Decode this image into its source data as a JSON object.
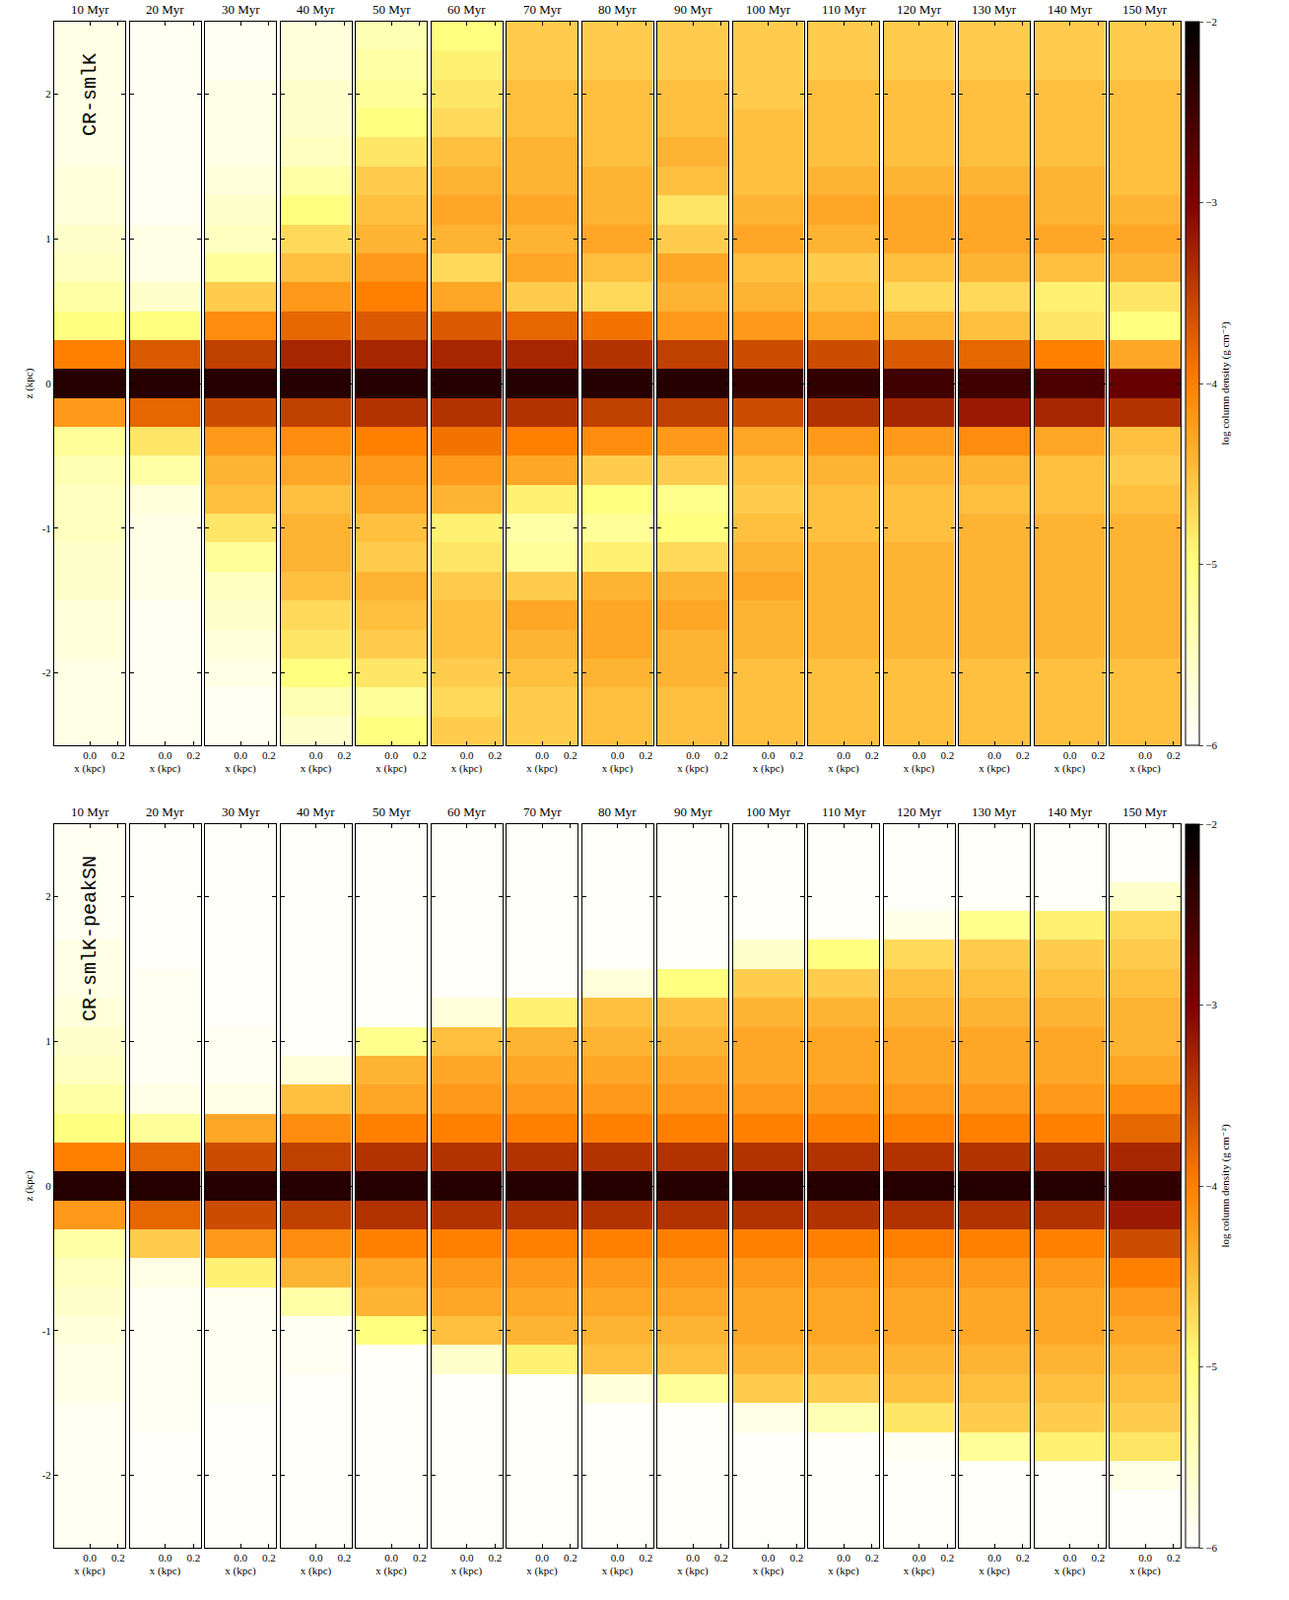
{
  "chart_data": [
    {
      "type": "heatmap",
      "title": "CR-smlK",
      "x_label": "x (kpc)",
      "y_label": "z (kpc)",
      "xlim": [
        -0.25,
        0.25
      ],
      "xticks": [
        {
          "value": 0,
          "label": "0.0"
        },
        {
          "value": 0.2,
          "label": "0.2"
        }
      ],
      "ylim": [
        -2.5,
        2.5
      ],
      "yticks": [
        -2,
        -1,
        0,
        1,
        2
      ],
      "colorbar": {
        "label": "log column density (g cm⁻²)",
        "range": [
          -6,
          -2
        ],
        "ticks": [
          -6,
          -5,
          -4,
          -3,
          -2
        ]
      },
      "z": [
        -2.4,
        -2.2,
        -2.0,
        -1.8,
        -1.6,
        -1.4,
        -1.2,
        -1.0,
        -0.8,
        -0.6,
        -0.4,
        -0.2,
        0,
        0.2,
        0.4,
        0.6,
        0.8,
        1.0,
        1.2,
        1.4,
        1.6,
        1.8,
        2.0,
        2.2,
        2.4
      ],
      "panels": [
        {
          "title": "10 Myr",
          "values": [
            -5.8,
            -5.8,
            -5.8,
            -5.7,
            -5.7,
            -5.6,
            -5.6,
            -5.5,
            -5.5,
            -5.4,
            -5.2,
            -4.2,
            -2.3,
            -4.0,
            -5.0,
            -5.3,
            -5.5,
            -5.6,
            -5.7,
            -5.7,
            -5.8,
            -5.8,
            -5.8,
            -5.8,
            -5.8
          ]
        },
        {
          "title": "20 Myr",
          "values": [
            -5.9,
            -5.9,
            -5.9,
            -5.9,
            -5.9,
            -5.8,
            -5.8,
            -5.8,
            -5.7,
            -5.3,
            -4.8,
            -3.8,
            -2.3,
            -3.7,
            -5.0,
            -5.6,
            -5.8,
            -5.8,
            -5.9,
            -5.9,
            -5.9,
            -5.9,
            -5.9,
            -5.9,
            -5.9
          ]
        },
        {
          "title": "30 Myr",
          "values": [
            -5.9,
            -5.9,
            -5.8,
            -5.7,
            -5.6,
            -5.5,
            -5.2,
            -4.8,
            -4.5,
            -4.4,
            -4.2,
            -3.6,
            -2.3,
            -3.5,
            -4.1,
            -4.6,
            -5.2,
            -5.5,
            -5.6,
            -5.7,
            -5.8,
            -5.8,
            -5.8,
            -5.9,
            -5.9
          ]
        },
        {
          "title": "40 Myr",
          "values": [
            -5.6,
            -5.4,
            -5.0,
            -4.8,
            -4.7,
            -4.5,
            -4.4,
            -4.4,
            -4.5,
            -4.3,
            -4.1,
            -3.5,
            -2.3,
            -3.3,
            -3.8,
            -4.2,
            -4.5,
            -4.7,
            -5.0,
            -5.3,
            -5.5,
            -5.6,
            -5.6,
            -5.7,
            -5.7
          ]
        },
        {
          "title": "50 Myr",
          "values": [
            -5.0,
            -5.2,
            -4.8,
            -4.6,
            -4.5,
            -4.4,
            -4.6,
            -4.5,
            -4.3,
            -4.2,
            -4.0,
            -3.4,
            -2.3,
            -3.3,
            -3.7,
            -4.0,
            -4.2,
            -4.4,
            -4.5,
            -4.6,
            -4.8,
            -5.0,
            -5.2,
            -5.3,
            -5.4
          ]
        },
        {
          "title": "60 Myr",
          "values": [
            -4.6,
            -4.7,
            -4.6,
            -4.5,
            -4.5,
            -4.6,
            -4.8,
            -4.9,
            -4.4,
            -4.2,
            -3.9,
            -3.4,
            -2.3,
            -3.3,
            -3.7,
            -4.3,
            -4.7,
            -4.4,
            -4.3,
            -4.4,
            -4.5,
            -4.7,
            -4.8,
            -4.9,
            -5.0
          ]
        },
        {
          "title": "70 Myr",
          "values": [
            -4.6,
            -4.6,
            -4.5,
            -4.4,
            -4.3,
            -4.6,
            -5.2,
            -5.3,
            -4.9,
            -4.3,
            -4.0,
            -3.4,
            -2.3,
            -3.3,
            -3.8,
            -4.6,
            -4.3,
            -4.4,
            -4.3,
            -4.4,
            -4.4,
            -4.5,
            -4.5,
            -4.6,
            -4.6
          ]
        },
        {
          "title": "80 Myr",
          "values": [
            -4.5,
            -4.5,
            -4.4,
            -4.3,
            -4.3,
            -4.4,
            -4.9,
            -5.2,
            -5.0,
            -4.6,
            -4.1,
            -3.5,
            -2.3,
            -3.4,
            -3.9,
            -4.7,
            -4.5,
            -4.3,
            -4.4,
            -4.4,
            -4.5,
            -4.5,
            -4.5,
            -4.6,
            -4.6
          ]
        },
        {
          "title": "90 Myr",
          "values": [
            -4.5,
            -4.5,
            -4.4,
            -4.4,
            -4.3,
            -4.4,
            -4.7,
            -5.0,
            -5.1,
            -4.6,
            -4.2,
            -3.5,
            -2.3,
            -3.5,
            -4.2,
            -4.4,
            -4.3,
            -4.6,
            -4.8,
            -4.5,
            -4.4,
            -4.5,
            -4.5,
            -4.6,
            -4.6
          ]
        },
        {
          "title": "100 Myr",
          "values": [
            -4.5,
            -4.5,
            -4.5,
            -4.4,
            -4.4,
            -4.3,
            -4.4,
            -4.5,
            -4.6,
            -4.5,
            -4.3,
            -3.6,
            -2.4,
            -3.6,
            -4.2,
            -4.4,
            -4.5,
            -4.3,
            -4.4,
            -4.5,
            -4.5,
            -4.5,
            -4.6,
            -4.6,
            -4.6
          ]
        },
        {
          "title": "110 Myr",
          "values": [
            -4.5,
            -4.5,
            -4.5,
            -4.4,
            -4.4,
            -4.4,
            -4.4,
            -4.5,
            -4.5,
            -4.4,
            -4.2,
            -3.4,
            -2.4,
            -3.6,
            -4.3,
            -4.5,
            -4.6,
            -4.4,
            -4.3,
            -4.4,
            -4.5,
            -4.5,
            -4.5,
            -4.6,
            -4.6
          ]
        },
        {
          "title": "120 Myr",
          "values": [
            -4.5,
            -4.5,
            -4.5,
            -4.4,
            -4.4,
            -4.4,
            -4.4,
            -4.5,
            -4.5,
            -4.4,
            -4.2,
            -3.3,
            -2.5,
            -3.7,
            -4.4,
            -4.7,
            -4.5,
            -4.3,
            -4.3,
            -4.4,
            -4.5,
            -4.5,
            -4.5,
            -4.6,
            -4.6
          ]
        },
        {
          "title": "130 Myr",
          "values": [
            -4.5,
            -4.5,
            -4.5,
            -4.4,
            -4.4,
            -4.4,
            -4.4,
            -4.4,
            -4.5,
            -4.4,
            -4.1,
            -3.2,
            -2.5,
            -3.8,
            -4.5,
            -4.7,
            -4.4,
            -4.3,
            -4.3,
            -4.4,
            -4.5,
            -4.5,
            -4.5,
            -4.6,
            -4.6
          ]
        },
        {
          "title": "140 Myr",
          "values": [
            -4.5,
            -4.5,
            -4.5,
            -4.4,
            -4.4,
            -4.4,
            -4.4,
            -4.4,
            -4.5,
            -4.5,
            -4.3,
            -3.3,
            -2.6,
            -4.0,
            -4.8,
            -4.9,
            -4.5,
            -4.3,
            -4.4,
            -4.4,
            -4.5,
            -4.5,
            -4.5,
            -4.6,
            -4.6
          ]
        },
        {
          "title": "150 Myr",
          "values": [
            -4.5,
            -4.5,
            -4.5,
            -4.4,
            -4.4,
            -4.4,
            -4.4,
            -4.4,
            -4.5,
            -4.6,
            -4.5,
            -3.4,
            -2.8,
            -4.3,
            -5.0,
            -4.8,
            -4.4,
            -4.3,
            -4.4,
            -4.5,
            -4.5,
            -4.5,
            -4.5,
            -4.6,
            -4.6
          ]
        }
      ]
    },
    {
      "type": "heatmap",
      "title": "CR-smlK-peakSN",
      "x_label": "x (kpc)",
      "y_label": "z (kpc)",
      "xlim": [
        -0.25,
        0.25
      ],
      "xticks": [
        {
          "value": 0,
          "label": "0.0"
        },
        {
          "value": 0.2,
          "label": "0.2"
        }
      ],
      "ylim": [
        -2.5,
        2.5
      ],
      "yticks": [
        -2,
        -1,
        0,
        1,
        2
      ],
      "colorbar": {
        "label": "log column density (g cm⁻²)",
        "range": [
          -6,
          -2
        ],
        "ticks": [
          -6,
          -5,
          -4,
          -3,
          -2
        ]
      },
      "z": [
        -2.4,
        -2.2,
        -2.0,
        -1.8,
        -1.6,
        -1.4,
        -1.2,
        -1.0,
        -0.8,
        -0.6,
        -0.4,
        -0.2,
        0,
        0.2,
        0.4,
        0.6,
        0.8,
        1.0,
        1.2,
        1.4,
        1.6,
        1.8,
        2.0,
        2.2,
        2.4
      ],
      "panels": [
        {
          "title": "10 Myr",
          "values": [
            -5.9,
            -5.9,
            -5.9,
            -5.9,
            -5.9,
            -5.8,
            -5.8,
            -5.7,
            -5.6,
            -5.5,
            -5.3,
            -4.2,
            -2.3,
            -4.0,
            -5.0,
            -5.3,
            -5.5,
            -5.6,
            -5.7,
            -5.8,
            -5.8,
            -5.9,
            -5.9,
            -5.9,
            -5.9
          ]
        },
        {
          "title": "20 Myr",
          "values": [
            -5.95,
            -5.95,
            -5.95,
            -5.95,
            -5.9,
            -5.9,
            -5.9,
            -5.9,
            -5.9,
            -5.8,
            -4.6,
            -3.8,
            -2.3,
            -3.8,
            -5.2,
            -5.8,
            -5.9,
            -5.9,
            -5.9,
            -5.9,
            -5.95,
            -5.95,
            -5.95,
            -5.95,
            -5.95
          ]
        },
        {
          "title": "30 Myr",
          "values": [
            -5.95,
            -5.95,
            -5.95,
            -5.95,
            -5.95,
            -5.9,
            -5.9,
            -5.9,
            -5.9,
            -4.9,
            -4.2,
            -3.6,
            -2.3,
            -3.6,
            -4.3,
            -5.8,
            -5.9,
            -5.9,
            -5.95,
            -5.95,
            -5.95,
            -5.95,
            -5.95,
            -5.95,
            -5.95
          ]
        },
        {
          "title": "40 Myr",
          "values": [
            -5.95,
            -5.95,
            -5.95,
            -5.95,
            -5.95,
            -5.95,
            -5.9,
            -5.9,
            -5.3,
            -4.4,
            -4.1,
            -3.5,
            -2.3,
            -3.5,
            -4.1,
            -4.5,
            -5.7,
            -5.95,
            -5.95,
            -5.95,
            -5.95,
            -5.95,
            -5.95,
            -5.95,
            -5.95
          ]
        },
        {
          "title": "50 Myr",
          "values": [
            -5.95,
            -5.95,
            -5.95,
            -5.95,
            -5.95,
            -5.95,
            -5.95,
            -5.0,
            -4.4,
            -4.3,
            -4.0,
            -3.4,
            -2.3,
            -3.4,
            -4.0,
            -4.3,
            -4.4,
            -5.1,
            -5.95,
            -5.95,
            -5.95,
            -5.95,
            -5.95,
            -5.95,
            -5.95
          ]
        },
        {
          "title": "60 Myr",
          "values": [
            -5.95,
            -5.95,
            -5.95,
            -5.95,
            -5.95,
            -5.95,
            -5.6,
            -4.5,
            -4.3,
            -4.2,
            -4.0,
            -3.4,
            -2.3,
            -3.4,
            -4.0,
            -4.2,
            -4.3,
            -4.5,
            -5.7,
            -5.95,
            -5.95,
            -5.95,
            -5.95,
            -5.95,
            -5.95
          ]
        },
        {
          "title": "70 Myr",
          "values": [
            -5.95,
            -5.95,
            -5.95,
            -5.95,
            -5.95,
            -5.95,
            -4.9,
            -4.4,
            -4.3,
            -4.2,
            -4.0,
            -3.4,
            -2.3,
            -3.4,
            -4.0,
            -4.2,
            -4.3,
            -4.4,
            -4.9,
            -5.95,
            -5.95,
            -5.95,
            -5.95,
            -5.95,
            -5.95
          ]
        },
        {
          "title": "80 Myr",
          "values": [
            -5.95,
            -5.95,
            -5.95,
            -5.95,
            -5.95,
            -5.7,
            -4.5,
            -4.4,
            -4.3,
            -4.2,
            -4.0,
            -3.4,
            -2.3,
            -3.4,
            -4.0,
            -4.2,
            -4.3,
            -4.4,
            -4.5,
            -5.7,
            -5.95,
            -5.95,
            -5.95,
            -5.95,
            -5.95
          ]
        },
        {
          "title": "90 Myr",
          "values": [
            -5.95,
            -5.95,
            -5.95,
            -5.95,
            -5.95,
            -5.2,
            -4.5,
            -4.4,
            -4.3,
            -4.2,
            -4.0,
            -3.4,
            -2.3,
            -3.4,
            -4.0,
            -4.2,
            -4.3,
            -4.4,
            -4.5,
            -5.0,
            -5.95,
            -5.95,
            -5.95,
            -5.95,
            -5.95
          ]
        },
        {
          "title": "100 Myr",
          "values": [
            -5.95,
            -5.95,
            -5.95,
            -5.95,
            -5.8,
            -4.6,
            -4.4,
            -4.3,
            -4.3,
            -4.2,
            -4.0,
            -3.4,
            -2.3,
            -3.4,
            -4.0,
            -4.2,
            -4.3,
            -4.3,
            -4.4,
            -4.6,
            -5.6,
            -5.95,
            -5.95,
            -5.95,
            -5.95
          ]
        },
        {
          "title": "110 Myr",
          "values": [
            -5.95,
            -5.95,
            -5.95,
            -5.95,
            -5.4,
            -4.6,
            -4.4,
            -4.3,
            -4.3,
            -4.2,
            -4.0,
            -3.4,
            -2.3,
            -3.4,
            -4.0,
            -4.2,
            -4.3,
            -4.3,
            -4.4,
            -4.6,
            -5.0,
            -5.95,
            -5.95,
            -5.95,
            -5.95
          ]
        },
        {
          "title": "120 Myr",
          "values": [
            -5.95,
            -5.95,
            -5.95,
            -5.9,
            -4.8,
            -4.5,
            -4.4,
            -4.3,
            -4.3,
            -4.2,
            -4.0,
            -3.4,
            -2.3,
            -3.4,
            -4.0,
            -4.2,
            -4.3,
            -4.3,
            -4.4,
            -4.5,
            -4.7,
            -5.8,
            -5.95,
            -5.95,
            -5.95
          ]
        },
        {
          "title": "130 Myr",
          "values": [
            -5.95,
            -5.95,
            -5.95,
            -5.2,
            -4.6,
            -4.5,
            -4.4,
            -4.3,
            -4.3,
            -4.2,
            -4.0,
            -3.4,
            -2.3,
            -3.4,
            -4.0,
            -4.2,
            -4.3,
            -4.3,
            -4.4,
            -4.5,
            -4.6,
            -5.1,
            -5.95,
            -5.95,
            -5.95
          ]
        },
        {
          "title": "140 Myr",
          "values": [
            -5.95,
            -5.95,
            -5.95,
            -4.9,
            -4.6,
            -4.5,
            -4.4,
            -4.3,
            -4.3,
            -4.2,
            -4.0,
            -3.4,
            -2.3,
            -3.4,
            -4.0,
            -4.2,
            -4.3,
            -4.3,
            -4.4,
            -4.5,
            -4.6,
            -4.9,
            -5.95,
            -5.95,
            -5.95
          ]
        },
        {
          "title": "150 Myr",
          "values": [
            -5.95,
            -5.95,
            -5.8,
            -4.8,
            -4.6,
            -4.5,
            -4.4,
            -4.3,
            -4.2,
            -4.0,
            -3.6,
            -3.2,
            -2.4,
            -3.3,
            -3.8,
            -4.1,
            -4.3,
            -4.4,
            -4.4,
            -4.5,
            -4.6,
            -4.7,
            -5.6,
            -5.95,
            -5.95
          ]
        }
      ]
    }
  ]
}
